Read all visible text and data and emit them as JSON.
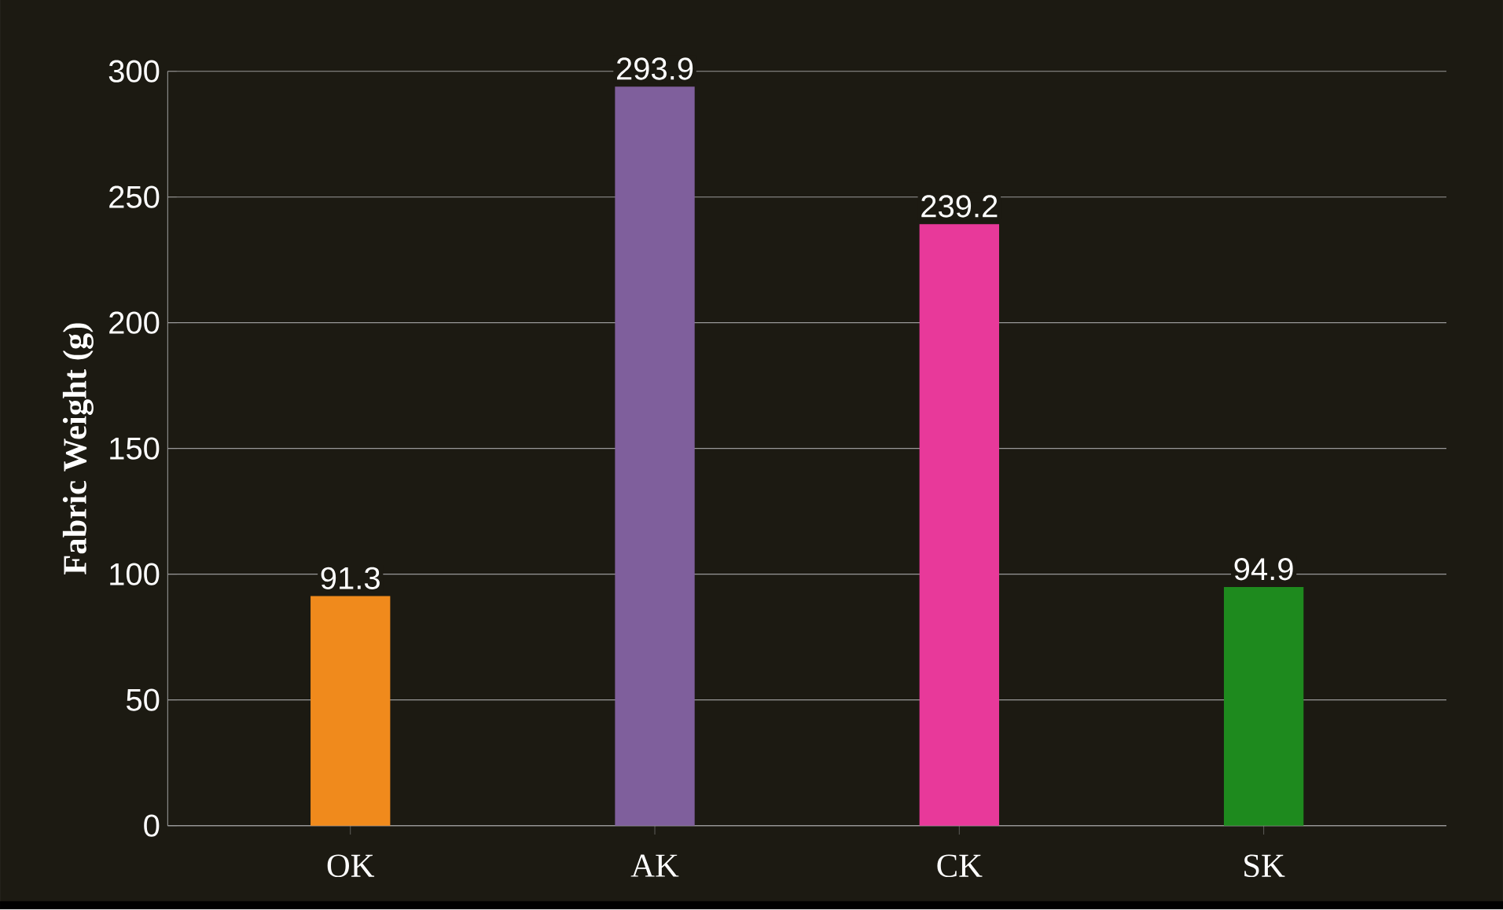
{
  "chart_data": {
    "type": "bar",
    "ylabel": "Fabric Weight (g)",
    "categories": [
      "OK",
      "AK",
      "CK",
      "SK"
    ],
    "values": [
      91.3,
      293.9,
      239.2,
      94.9
    ],
    "colors": [
      "#f08a1c",
      "#7f5f9c",
      "#e8399a",
      "#1e8a1e"
    ],
    "ylim": [
      0,
      300
    ],
    "yticks": [
      0,
      50,
      100,
      150,
      200,
      250,
      300
    ],
    "grid": "y",
    "data_labels": true
  }
}
